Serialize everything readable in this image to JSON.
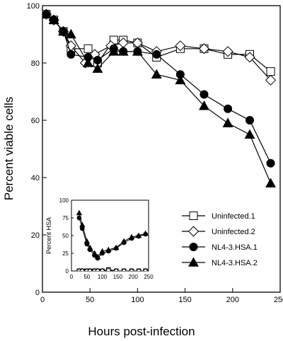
{
  "chart_data": {
    "main": {
      "type": "line",
      "xlabel": "Hours post-infection",
      "ylabel": "Percent viable cells",
      "xlim": [
        0,
        250
      ],
      "ylim": [
        0,
        100
      ],
      "xticks": [
        0,
        50,
        100,
        150,
        200,
        250
      ],
      "yticks": [
        0,
        20,
        40,
        60,
        80,
        100
      ],
      "grid": false,
      "legend_position": "lower-right",
      "series": [
        {
          "name": "Uninfected.1",
          "marker": "square-open",
          "x": [
            4,
            12,
            22,
            30,
            48,
            58,
            75,
            85,
            100,
            120,
            145,
            170,
            195,
            218,
            240
          ],
          "y": [
            97,
            95,
            91,
            85,
            85,
            80,
            88,
            88,
            87,
            82,
            85,
            85,
            83,
            83,
            77
          ]
        },
        {
          "name": "Uninfected.2",
          "marker": "diamond-open",
          "x": [
            4,
            12,
            22,
            30,
            45,
            55,
            72,
            85,
            100,
            120,
            145,
            170,
            195,
            218,
            240
          ],
          "y": [
            97,
            95,
            91,
            86,
            80,
            83,
            86,
            87,
            87,
            84,
            86,
            85,
            84,
            82,
            74
          ]
        },
        {
          "name": "NL4-3.HSA.1",
          "marker": "circle-filled",
          "x": [
            4,
            12,
            22,
            30,
            48,
            58,
            75,
            85,
            100,
            120,
            145,
            170,
            195,
            218,
            240
          ],
          "y": [
            97,
            95,
            91,
            83,
            82,
            81,
            85,
            84,
            84,
            83,
            76,
            69,
            64,
            60,
            45
          ]
        },
        {
          "name": "NL4-3.HSA.2",
          "marker": "triangle-filled",
          "x": [
            4,
            12,
            22,
            30,
            48,
            58,
            75,
            85,
            100,
            120,
            145,
            170,
            195,
            218,
            240
          ],
          "y": [
            97,
            95,
            91,
            90,
            80,
            78,
            84,
            84,
            84,
            76,
            74,
            65,
            59,
            55,
            38
          ]
        }
      ]
    },
    "inset": {
      "type": "line",
      "ylabel": "Percent HSA",
      "xlim": [
        0,
        250
      ],
      "ylim": [
        0,
        100
      ],
      "xticks": [
        0,
        50,
        100,
        150,
        200,
        250
      ],
      "yticks": [
        0,
        25,
        50,
        75,
        100
      ],
      "series": [
        {
          "name": "Uninfected.1",
          "marker": "square-open",
          "x": [
            25,
            35,
            50,
            60,
            75,
            85,
            100,
            120,
            145,
            170,
            195,
            218,
            240
          ],
          "y": [
            0,
            0,
            0,
            0,
            0,
            0,
            0,
            2,
            0,
            0,
            0,
            0,
            0
          ]
        },
        {
          "name": "Uninfected.2",
          "marker": "diamond-open",
          "x": [
            25,
            35,
            50,
            60,
            75,
            85,
            100,
            120,
            145,
            170,
            195,
            218,
            240
          ],
          "y": [
            0,
            0,
            0,
            0,
            0,
            0,
            0,
            1,
            0,
            0,
            0,
            0,
            0
          ]
        },
        {
          "name": "NL4-3.HSA.1",
          "marker": "circle-filled",
          "x": [
            25,
            35,
            50,
            60,
            75,
            85,
            100,
            120,
            145,
            170,
            195,
            218,
            240
          ],
          "y": [
            75,
            60,
            38,
            30,
            22,
            18,
            25,
            28,
            32,
            40,
            46,
            49,
            52
          ]
        },
        {
          "name": "NL4-3.HSA.2",
          "marker": "triangle-filled",
          "x": [
            25,
            35,
            50,
            60,
            75,
            85,
            100,
            120,
            145,
            170,
            195,
            218,
            240
          ],
          "y": [
            82,
            65,
            42,
            33,
            25,
            20,
            28,
            30,
            33,
            42,
            48,
            50,
            53
          ]
        }
      ]
    }
  }
}
